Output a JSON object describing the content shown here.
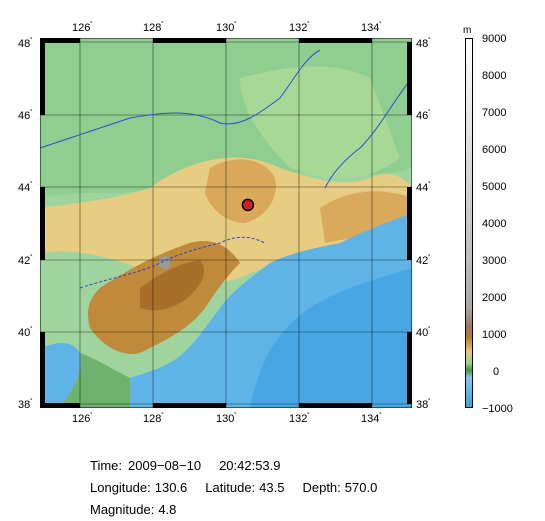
{
  "map": {
    "lon_range": [
      124.9,
      135.1
    ],
    "lat_range": [
      37.9,
      48.1
    ],
    "lon_ticks": [
      126,
      128,
      130,
      132,
      134
    ],
    "lat_ticks": [
      38,
      40,
      42,
      44,
      46,
      48
    ],
    "lon_tick_labels": [
      "126",
      "128",
      "130",
      "132",
      "134"
    ],
    "lat_tick_labels": [
      "38",
      "40",
      "42",
      "44",
      "46",
      "48"
    ],
    "degree_symbol": "˚",
    "event": {
      "lon": 130.6,
      "lat": 43.5,
      "color": "#cc2222"
    },
    "colors": {
      "sea_shallow": "#5fb3e6",
      "sea_deep": "#3fa0e0",
      "lowland": "#8ccf8c",
      "hills": "#e5c97a",
      "mountains": "#b8782f",
      "peaks": "#9a9a9a",
      "river": "#2b4fd6",
      "border": "#3344bb"
    }
  },
  "colorbar": {
    "unit": "m",
    "labels": [
      "9000",
      "8000",
      "7000",
      "6000",
      "5000",
      "4000",
      "3000",
      "2000",
      "1000",
      "0",
      "−1000"
    ],
    "range": [
      -1000,
      9000
    ]
  },
  "info": {
    "time_label": "Time:",
    "date": "2009−08−10",
    "time": "20:42:53.9",
    "longitude_label": "Longitude:",
    "longitude": "130.6",
    "latitude_label": "Latitude:",
    "latitude": "43.5",
    "depth_label": "Depth:",
    "depth": "570.0",
    "magnitude_label": "Magnitude:",
    "magnitude": "4.8"
  }
}
